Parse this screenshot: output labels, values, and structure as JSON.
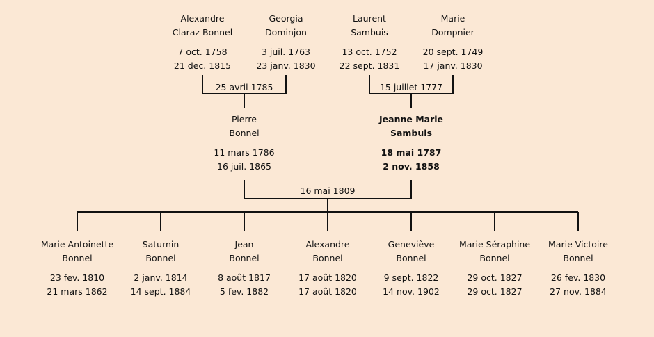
{
  "grandparents": [
    {
      "first": "Alexandre",
      "last": "Claraz Bonnel",
      "birth": "7 oct. 1758",
      "death": "21 dec. 1815"
    },
    {
      "first": "Georgia",
      "last": "Dominjon",
      "birth": "3 juil. 1763",
      "death": "23 janv. 1830"
    },
    {
      "first": "Laurent",
      "last": "Sambuis",
      "birth": "13 oct. 1752",
      "death": "22 sept. 1831"
    },
    {
      "first": "Marie",
      "last": "Dompnier",
      "birth": "20 sept. 1749",
      "death": "17 janv. 1830"
    }
  ],
  "grandparent_marriages": [
    "25 avril 1785",
    "15 juillet 1777"
  ],
  "parents": [
    {
      "first": "Pierre",
      "last": "Bonnel",
      "birth": "11 mars 1786",
      "death": "16 juil. 1865"
    },
    {
      "first": "Jeanne Marie",
      "last": "Sambuis",
      "birth": "18 mai 1787",
      "death": "2 nov. 1858"
    }
  ],
  "parent_marriage": "16 mai 1809",
  "children": [
    {
      "first": "Marie Antoinette",
      "last": "Bonnel",
      "birth": "23 fev. 1810",
      "death": "21 mars 1862"
    },
    {
      "first": "Saturnin",
      "last": "Bonnel",
      "birth": "2 janv. 1814",
      "death": "14 sept. 1884"
    },
    {
      "first": "Jean",
      "last": "Bonnel",
      "birth": "8 août 1817",
      "death": "5 fev. 1882"
    },
    {
      "first": "Alexandre",
      "last": "Bonnel",
      "birth": "17 août 1820",
      "death": "17 août 1820"
    },
    {
      "first": "Geneviève",
      "last": "Bonnel",
      "birth": "9 sept. 1822",
      "death": "14 nov. 1902"
    },
    {
      "first": "Marie Séraphine",
      "last": "Bonnel",
      "birth": "29 oct. 1827",
      "death": "29 oct. 1827"
    },
    {
      "first": "Marie Victoire",
      "last": "Bonnel",
      "birth": "26 fev. 1830",
      "death": "27 nov. 1884"
    }
  ],
  "colors": {
    "background": "#fbe8d5",
    "line": "#111111",
    "text": "#111111"
  }
}
